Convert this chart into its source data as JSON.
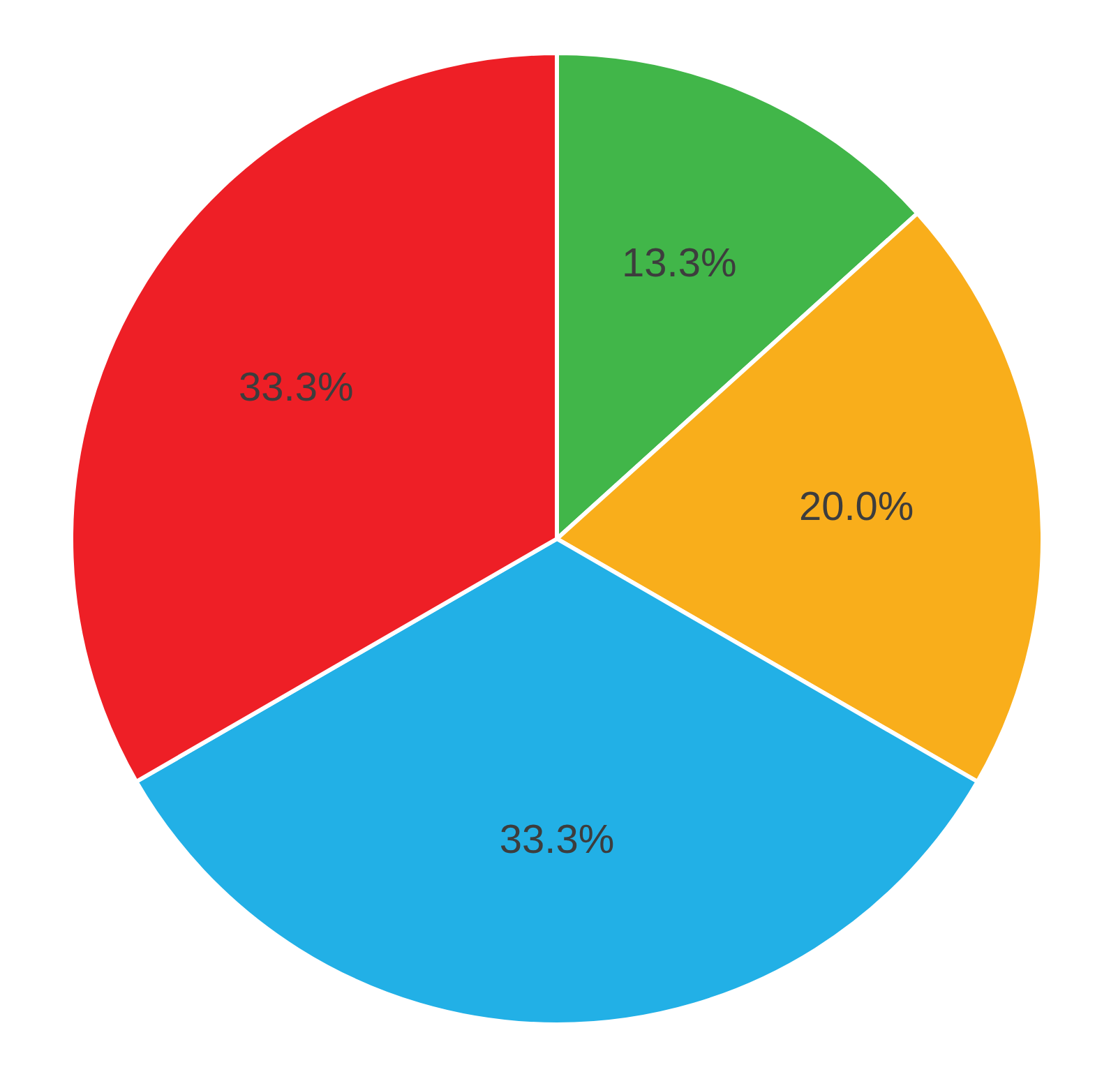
{
  "chart_data": {
    "type": "pie",
    "categories": [
      null,
      null,
      null,
      null
    ],
    "values": [
      13.3,
      20.0,
      33.3,
      33.3
    ],
    "colors": [
      "#41b649",
      "#f9ae1b",
      "#22b0e6",
      "#ee1f26"
    ],
    "value_labels": [
      "13.3%",
      "20.0%",
      "33.3%",
      "33.3%"
    ]
  }
}
